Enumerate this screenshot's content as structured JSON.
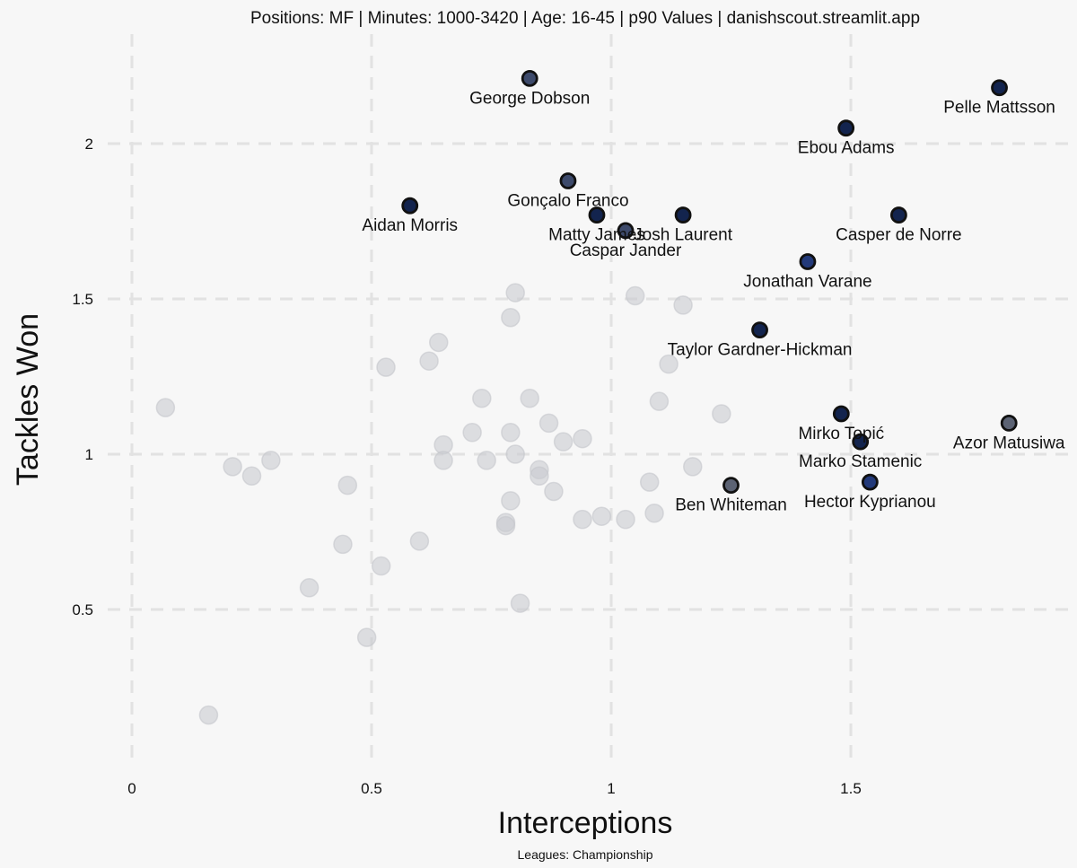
{
  "chart_data": {
    "type": "scatter",
    "title": "Positions: MF  | Minutes: 1000-3420 | Age: 16-45  | p90 Values | danishscout.streamlit.app",
    "xlabel": "Interceptions",
    "ylabel": "Tackles Won",
    "footnote": "Leagues: Championship",
    "xlim": [
      0,
      1.95
    ],
    "ylim": [
      0.05,
      2.28
    ],
    "x_ticks": [
      0,
      0.5,
      1,
      1.5
    ],
    "x_tick_labels": [
      "0",
      "0.5",
      "1",
      "1.5"
    ],
    "y_ticks": [
      0.5,
      1,
      1.5,
      2
    ],
    "y_tick_labels": [
      "0.5",
      "1",
      "1.5",
      "2"
    ],
    "grid": true,
    "colors": {
      "background": "#f7f7f7",
      "other_points": "#c9cbd1",
      "highlight_dark": "#13244e",
      "highlight_mid": "#3d4a6b",
      "highlight_grey": "#5c6374",
      "grid": "#e2e2e2"
    },
    "highlighted": [
      {
        "name": "George Dobson",
        "x": 0.83,
        "y": 2.21,
        "color": "#3d4a6b",
        "label_pos": "below"
      },
      {
        "name": "Pelle Mattsson",
        "x": 1.81,
        "y": 2.18,
        "color": "#13244e",
        "label_pos": "below"
      },
      {
        "name": "Ebou Adams",
        "x": 1.49,
        "y": 2.05,
        "color": "#13244e",
        "label_pos": "below"
      },
      {
        "name": "Gonçalo Franco",
        "x": 0.91,
        "y": 1.88,
        "color": "#3d4a6b",
        "label_pos": "below"
      },
      {
        "name": "Aidan Morris",
        "x": 0.58,
        "y": 1.8,
        "color": "#13244e",
        "label_pos": "below"
      },
      {
        "name": "Matty James",
        "x": 0.97,
        "y": 1.77,
        "color": "#13244e",
        "label_pos": "below"
      },
      {
        "name": "Casper de Norre",
        "x": 1.6,
        "y": 1.77,
        "color": "#13244e",
        "label_pos": "below"
      },
      {
        "name": "Josh Laurent",
        "x": 1.15,
        "y": 1.77,
        "color": "#13244e",
        "label_pos": "below"
      },
      {
        "name": "Caspar Jander",
        "x": 1.03,
        "y": 1.72,
        "color": "#3d4a6b",
        "label_pos": "below"
      },
      {
        "name": "Jonathan Varane",
        "x": 1.41,
        "y": 1.62,
        "color": "#233a7a",
        "label_pos": "below"
      },
      {
        "name": "Taylor Gardner-Hickman",
        "x": 1.31,
        "y": 1.4,
        "color": "#13244e",
        "label_pos": "below"
      },
      {
        "name": "Mirko Topić",
        "x": 1.48,
        "y": 1.13,
        "color": "#13244e",
        "label_pos": "below"
      },
      {
        "name": "Azor Matusiwa",
        "x": 1.83,
        "y": 1.1,
        "color": "#5c6374",
        "label_pos": "below"
      },
      {
        "name": "Marko Stamenic",
        "x": 1.52,
        "y": 1.04,
        "color": "#13244e",
        "label_pos": "below"
      },
      {
        "name": "Hector Kyprianou",
        "x": 1.54,
        "y": 0.91,
        "color": "#233a7a",
        "label_pos": "below"
      },
      {
        "name": "Ben Whiteman",
        "x": 1.25,
        "y": 0.9,
        "color": "#5c6374",
        "label_pos": "below"
      }
    ],
    "other_points": [
      {
        "x": 0.07,
        "y": 1.15
      },
      {
        "x": 0.16,
        "y": 0.16
      },
      {
        "x": 0.21,
        "y": 0.96
      },
      {
        "x": 0.25,
        "y": 0.93
      },
      {
        "x": 0.29,
        "y": 0.98
      },
      {
        "x": 0.37,
        "y": 0.57
      },
      {
        "x": 0.44,
        "y": 0.71
      },
      {
        "x": 0.45,
        "y": 0.9
      },
      {
        "x": 0.49,
        "y": 0.41
      },
      {
        "x": 0.52,
        "y": 0.64
      },
      {
        "x": 0.53,
        "y": 1.28
      },
      {
        "x": 0.6,
        "y": 0.72
      },
      {
        "x": 0.62,
        "y": 1.3
      },
      {
        "x": 0.64,
        "y": 1.36
      },
      {
        "x": 0.65,
        "y": 1.03
      },
      {
        "x": 0.65,
        "y": 0.98
      },
      {
        "x": 0.71,
        "y": 1.07
      },
      {
        "x": 0.73,
        "y": 1.18
      },
      {
        "x": 0.74,
        "y": 0.98
      },
      {
        "x": 0.78,
        "y": 0.78
      },
      {
        "x": 0.78,
        "y": 0.77
      },
      {
        "x": 0.79,
        "y": 1.07
      },
      {
        "x": 0.79,
        "y": 0.85
      },
      {
        "x": 0.79,
        "y": 1.44
      },
      {
        "x": 0.8,
        "y": 1.52
      },
      {
        "x": 0.8,
        "y": 1.0
      },
      {
        "x": 0.81,
        "y": 0.52
      },
      {
        "x": 0.83,
        "y": 1.18
      },
      {
        "x": 0.85,
        "y": 0.95
      },
      {
        "x": 0.85,
        "y": 0.93
      },
      {
        "x": 0.87,
        "y": 1.1
      },
      {
        "x": 0.88,
        "y": 0.88
      },
      {
        "x": 0.9,
        "y": 1.04
      },
      {
        "x": 0.94,
        "y": 1.05
      },
      {
        "x": 0.94,
        "y": 0.79
      },
      {
        "x": 0.98,
        "y": 0.8
      },
      {
        "x": 1.03,
        "y": 0.79
      },
      {
        "x": 1.05,
        "y": 1.51
      },
      {
        "x": 1.08,
        "y": 0.91
      },
      {
        "x": 1.09,
        "y": 0.81
      },
      {
        "x": 1.1,
        "y": 1.17
      },
      {
        "x": 1.12,
        "y": 1.29
      },
      {
        "x": 1.15,
        "y": 1.48
      },
      {
        "x": 1.17,
        "y": 0.96
      },
      {
        "x": 1.23,
        "y": 1.13
      }
    ]
  }
}
